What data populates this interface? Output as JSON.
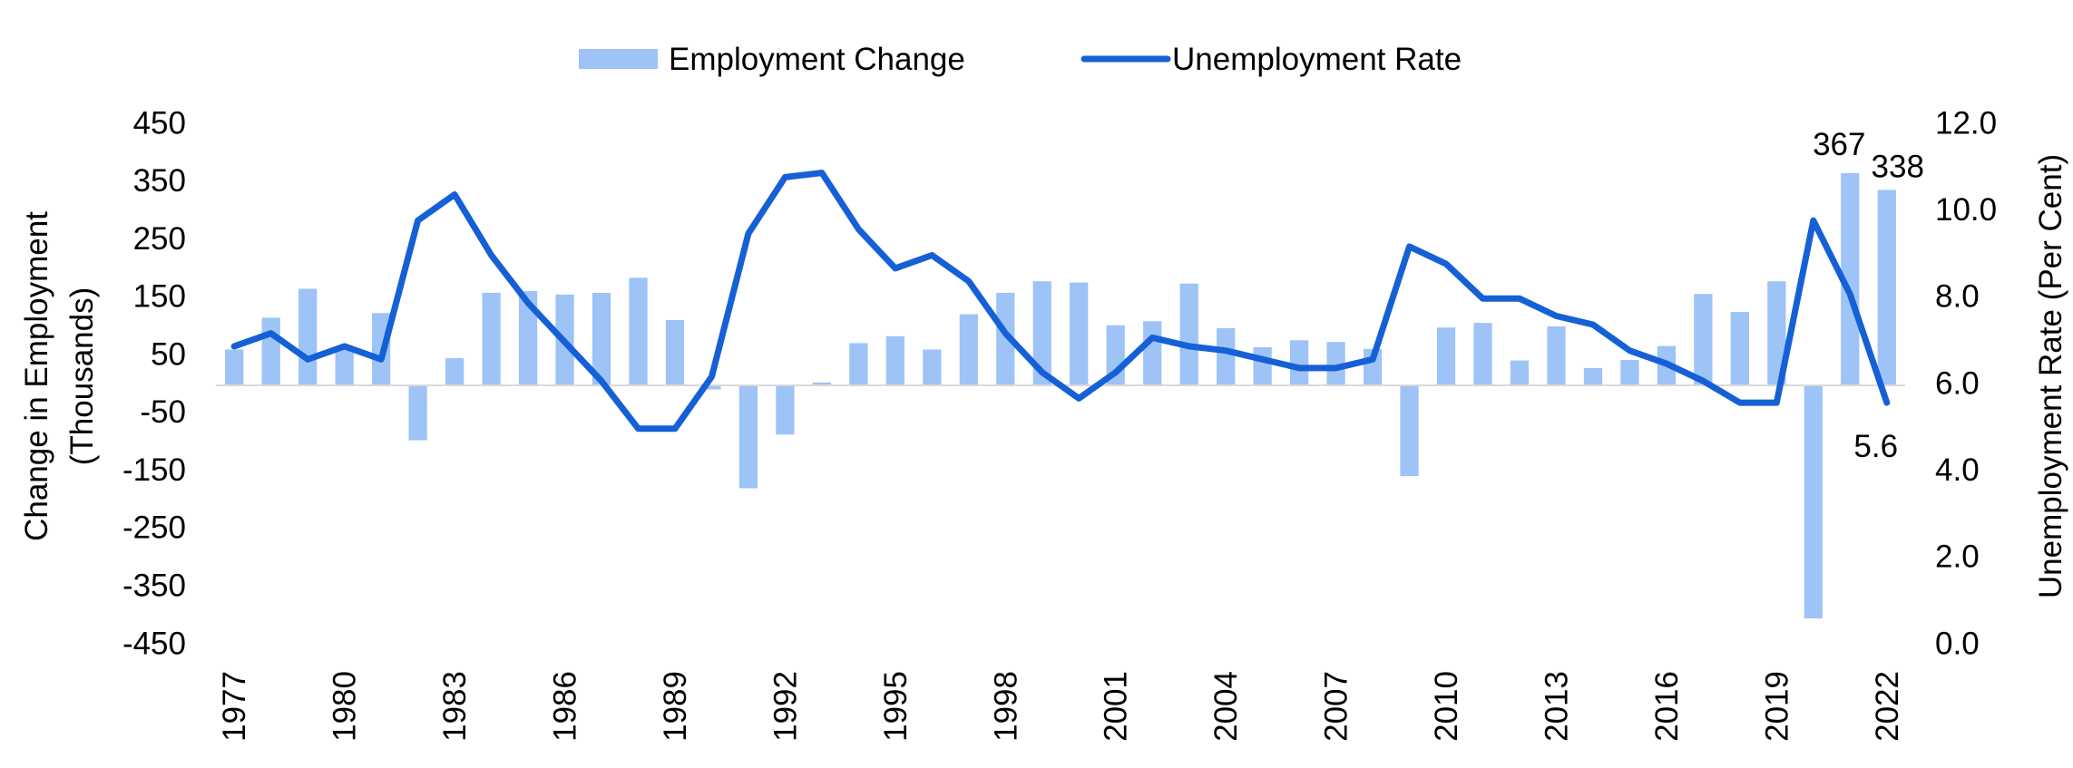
{
  "chart_data": {
    "type": "bar+line",
    "x": [
      1977,
      1978,
      1979,
      1980,
      1981,
      1982,
      1983,
      1984,
      1985,
      1986,
      1987,
      1988,
      1989,
      1990,
      1991,
      1992,
      1993,
      1994,
      1995,
      1996,
      1997,
      1998,
      1999,
      2000,
      2001,
      2002,
      2003,
      2004,
      2005,
      2006,
      2007,
      2008,
      2009,
      2010,
      2011,
      2012,
      2013,
      2014,
      2015,
      2016,
      2017,
      2018,
      2019,
      2020,
      2021,
      2022
    ],
    "x_tick_labels": [
      "1977",
      "1980",
      "1983",
      "1986",
      "1989",
      "1992",
      "1995",
      "1998",
      "2001",
      "2004",
      "2007",
      "2010",
      "2013",
      "2016",
      "2019",
      "2022"
    ],
    "series": [
      {
        "name": "Employment Change",
        "kind": "bar",
        "axis": "left",
        "color": "#9DC3F7",
        "values": [
          62,
          117,
          167,
          62,
          125,
          -95,
          47,
          160,
          163,
          157,
          160,
          186,
          113,
          -7,
          -178,
          -85,
          5,
          73,
          85,
          62,
          123,
          160,
          180,
          178,
          104,
          111,
          176,
          99,
          66,
          78,
          75,
          63,
          -157,
          100,
          108,
          43,
          102,
          30,
          44,
          68,
          158,
          127,
          180,
          -403,
          367,
          338
        ]
      },
      {
        "name": "Unemployment Rate",
        "kind": "line",
        "axis": "right",
        "color": "#1560D6",
        "values": [
          6.9,
          7.2,
          6.6,
          6.9,
          6.6,
          9.8,
          10.4,
          9.0,
          7.9,
          7.0,
          6.1,
          5.0,
          5.0,
          6.2,
          9.5,
          10.8,
          10.9,
          9.6,
          8.7,
          9.0,
          8.4,
          7.2,
          6.3,
          5.7,
          6.3,
          7.1,
          6.9,
          6.8,
          6.6,
          6.4,
          6.4,
          6.6,
          9.2,
          8.8,
          8.0,
          8.0,
          7.6,
          7.4,
          6.8,
          6.5,
          6.1,
          5.6,
          5.6,
          9.8,
          8.1,
          5.6
        ]
      }
    ],
    "y_left": {
      "label_line1": "Change in Employment",
      "label_line2": "(Thousands)",
      "range": [
        -450,
        450
      ],
      "ticks": [
        "450",
        "350",
        "250",
        "150",
        "50",
        "-50",
        "-150",
        "-250",
        "-350",
        "-450"
      ]
    },
    "y_right": {
      "label": "Unemployment Rate (Per Cent)",
      "range": [
        0,
        12
      ],
      "ticks": [
        "12.0",
        "10.0",
        "8.0",
        "6.0",
        "4.0",
        "2.0",
        "0.0"
      ]
    },
    "annotations": [
      {
        "text": "367",
        "year": 2021
      },
      {
        "text": "338",
        "year": 2022
      },
      {
        "text": "5.6",
        "year": 2022
      }
    ],
    "legend_position": "top-center",
    "grid": false
  }
}
